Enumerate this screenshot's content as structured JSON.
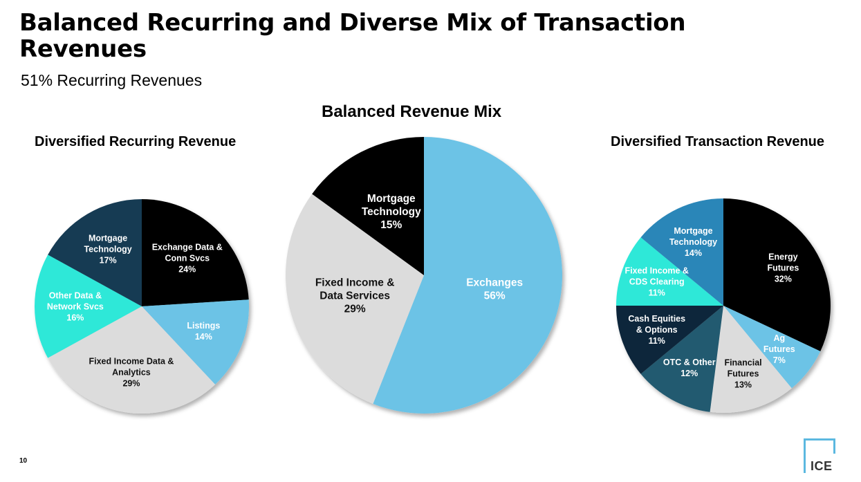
{
  "header": {
    "title": "Balanced Recurring and Diverse Mix of Transaction Revenues",
    "subtitle": "51% Recurring Revenues"
  },
  "footer": {
    "page_number": "10",
    "logo_text": "ICE"
  },
  "chart_data": [
    {
      "type": "pie",
      "title": "Diversified Recurring Revenue",
      "slices": [
        {
          "label": [
            "Exchange Data &",
            "Conn Svcs"
          ],
          "value": 24,
          "value_label": "24%",
          "color": "#000000",
          "text_color": "#ffffff"
        },
        {
          "label": [
            "Listings"
          ],
          "value": 14,
          "value_label": "14%",
          "color": "#6cc3e6",
          "text_color": "#ffffff"
        },
        {
          "label": [
            "Fixed Income Data &",
            "Analytics"
          ],
          "value": 29,
          "value_label": "29%",
          "color": "#dcdcdc",
          "text_color": "#111111"
        },
        {
          "label": [
            "Other Data &",
            "Network Svcs"
          ],
          "value": 16,
          "value_label": "16%",
          "color": "#2ee8d8",
          "text_color": "#ffffff"
        },
        {
          "label": [
            "Mortgage",
            "Technology"
          ],
          "value": 17,
          "value_label": "17%",
          "color": "#173a52",
          "text_color": "#ffffff"
        }
      ]
    },
    {
      "type": "pie",
      "title": "Balanced Revenue Mix",
      "slices": [
        {
          "label": [
            "Exchanges"
          ],
          "value": 56,
          "value_label": "56%",
          "color": "#6cc3e6",
          "text_color": "#ffffff"
        },
        {
          "label": [
            "Fixed Income &",
            "Data Services"
          ],
          "value": 29,
          "value_label": "29%",
          "color": "#dcdcdc",
          "text_color": "#111111"
        },
        {
          "label": [
            "Mortgage",
            "Technology"
          ],
          "value": 15,
          "value_label": "15%",
          "color": "#000000",
          "text_color": "#ffffff"
        }
      ]
    },
    {
      "type": "pie",
      "title": "Diversified Transaction Revenue",
      "slices": [
        {
          "label": [
            "Energy",
            "Futures"
          ],
          "value": 32,
          "value_label": "32%",
          "color": "#000000",
          "text_color": "#ffffff"
        },
        {
          "label": [
            "Ag",
            "Futures"
          ],
          "value": 7,
          "value_label": "7%",
          "color": "#6cc3e6",
          "text_color": "#ffffff"
        },
        {
          "label": [
            "Financial",
            "Futures"
          ],
          "value": 13,
          "value_label": "13%",
          "color": "#dcdcdc",
          "text_color": "#111111"
        },
        {
          "label": [
            "OTC & Other"
          ],
          "value": 12,
          "value_label": "12%",
          "color": "#245a70",
          "text_color": "#ffffff"
        },
        {
          "label": [
            "Cash Equities",
            "& Options"
          ],
          "value": 11,
          "value_label": "11%",
          "color": "#10283a",
          "text_color": "#ffffff"
        },
        {
          "label": [
            "Fixed Income &",
            "CDS Clearing"
          ],
          "value": 11,
          "value_label": "11%",
          "color": "#2ee8d8",
          "text_color": "#ffffff"
        },
        {
          "label": [
            "Mortgage",
            "Technology"
          ],
          "value": 14,
          "value_label": "14%",
          "color": "#2a86b8",
          "text_color": "#ffffff"
        }
      ]
    }
  ]
}
